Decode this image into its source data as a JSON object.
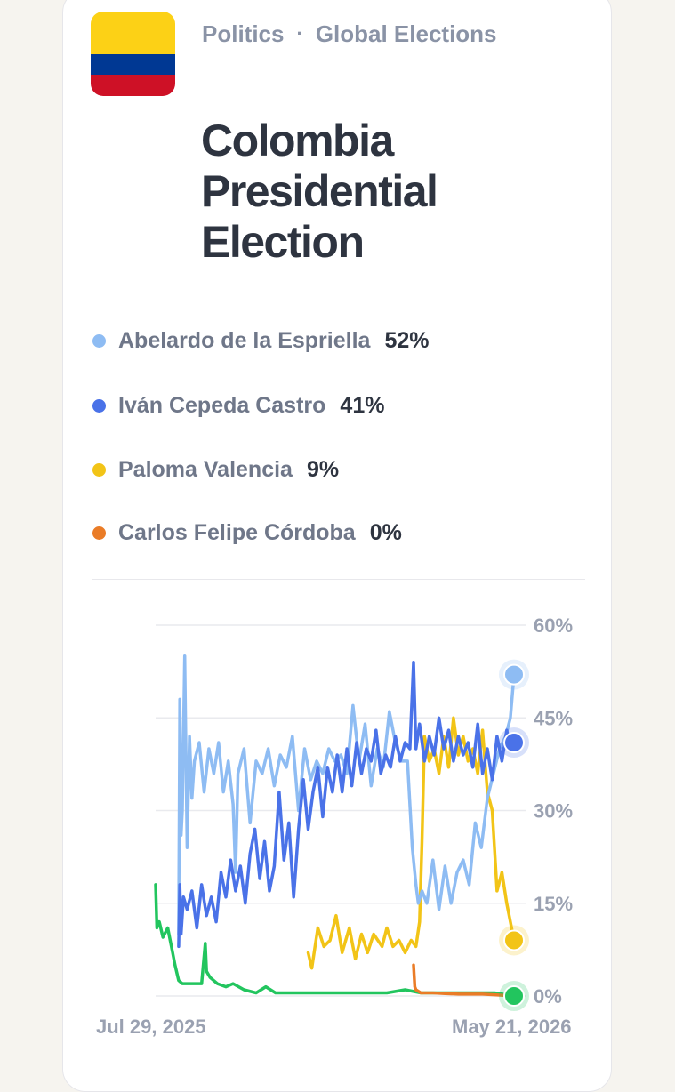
{
  "header": {
    "category": "Politics",
    "separator": "·",
    "subcategory": "Global Elections",
    "title": "Colombia Presidential Election",
    "flag_colors": [
      "#FCD116",
      "#003893",
      "#CE1126"
    ]
  },
  "legend": [
    {
      "name": "Abelardo de la Espriella",
      "value": "52%",
      "color": "#8ebcf3"
    },
    {
      "name": "Iván Cepeda Castro",
      "value": "41%",
      "color": "#4a72e8"
    },
    {
      "name": "Paloma Valencia",
      "value": "9%",
      "color": "#f2c417"
    },
    {
      "name": "Carlos Felipe Córdoba",
      "value": "0%",
      "color": "#ea7c27"
    }
  ],
  "chart_data": {
    "type": "line",
    "title": "",
    "xlabel": "",
    "ylabel": "",
    "x_start_label": "Jul 29, 2025",
    "x_end_label": "May 21, 2026",
    "x_range": [
      "2025-07-29",
      "2026-05-21"
    ],
    "ylim": [
      0,
      60
    ],
    "y_ticks": [
      0,
      15,
      30,
      45,
      60
    ],
    "y_tick_labels": [
      "0%",
      "15%",
      "30%",
      "45%",
      "60%"
    ],
    "y_axis_side": "right",
    "grid": true,
    "series": [
      {
        "name": "",
        "color": "#22c55e",
        "x": [
          "2025-07-29",
          "2025-07-30",
          "2025-08-01",
          "2025-08-04",
          "2025-08-08",
          "2025-08-12",
          "2025-08-14",
          "2025-08-17",
          "2025-08-20",
          "2025-08-25",
          "2025-08-30",
          "2025-09-05",
          "2025-09-08",
          "2025-09-09",
          "2025-09-12",
          "2025-09-18",
          "2025-09-25",
          "2025-10-01",
          "2025-10-10",
          "2025-10-20",
          "2025-10-28",
          "2025-11-05",
          "2025-11-15",
          "2025-11-25",
          "2025-12-05",
          "2025-12-20",
          "2026-01-05",
          "2026-01-20",
          "2026-02-05",
          "2026-02-20",
          "2026-03-05",
          "2026-03-20",
          "2026-04-05",
          "2026-04-20",
          "2026-05-05",
          "2026-05-21"
        ],
        "y": [
          18,
          11,
          12,
          9.5,
          11,
          7,
          5,
          2.5,
          2,
          2,
          2,
          2,
          8.5,
          4,
          3,
          2,
          1.5,
          2,
          1,
          0.5,
          1.5,
          0.5,
          0.5,
          0.5,
          0.5,
          0.5,
          0.5,
          0.5,
          0.5,
          1,
          0.5,
          0.5,
          0.5,
          0.5,
          0.5,
          0
        ]
      },
      {
        "name": "Carlos Felipe Córdoba",
        "color": "#ea7c27",
        "x": [
          "2026-02-27",
          "2026-02-28",
          "2026-03-01",
          "2026-03-05",
          "2026-03-15",
          "2026-03-25",
          "2026-04-05",
          "2026-04-15",
          "2026-04-25",
          "2026-05-05",
          "2026-05-21"
        ],
        "y": [
          5,
          1.5,
          1,
          0.5,
          0.5,
          0.4,
          0.3,
          0.3,
          0.3,
          0.2,
          0
        ]
      },
      {
        "name": "Paloma Valencia",
        "color": "#f2c417",
        "x": [
          "2025-12-02",
          "2025-12-05",
          "2025-12-10",
          "2025-12-15",
          "2025-12-20",
          "2025-12-25",
          "2025-12-30",
          "2026-01-05",
          "2026-01-10",
          "2026-01-15",
          "2026-01-20",
          "2026-01-25",
          "2026-02-01",
          "2026-02-05",
          "2026-02-10",
          "2026-02-15",
          "2026-02-20",
          "2026-02-25",
          "2026-03-01",
          "2026-03-04",
          "2026-03-06",
          "2026-03-08",
          "2026-03-12",
          "2026-03-16",
          "2026-03-20",
          "2026-03-24",
          "2026-03-28",
          "2026-04-01",
          "2026-04-05",
          "2026-04-09",
          "2026-04-13",
          "2026-04-17",
          "2026-04-21",
          "2026-04-25",
          "2026-04-29",
          "2026-05-03",
          "2026-05-07",
          "2026-05-11",
          "2026-05-15",
          "2026-05-18",
          "2026-05-21"
        ],
        "y": [
          7,
          4.5,
          11,
          8,
          9,
          13,
          7,
          11,
          6,
          10,
          7,
          10,
          8,
          11,
          8,
          9,
          7,
          9,
          8,
          12,
          25,
          42,
          38,
          40,
          36,
          42,
          37,
          45,
          39,
          42,
          38,
          40,
          36,
          43,
          33,
          30,
          17,
          20,
          15,
          12,
          9
        ]
      },
      {
        "name": "Abelardo de la Espriella",
        "color": "#8ebcf3",
        "x": [
          "2025-08-17",
          "2025-08-18",
          "2025-08-19",
          "2025-08-20",
          "2025-08-22",
          "2025-08-24",
          "2025-08-26",
          "2025-08-28",
          "2025-08-30",
          "2025-09-03",
          "2025-09-07",
          "2025-09-11",
          "2025-09-15",
          "2025-09-19",
          "2025-09-23",
          "2025-09-27",
          "2025-10-01",
          "2025-10-03",
          "2025-10-05",
          "2025-10-10",
          "2025-10-15",
          "2025-10-20",
          "2025-10-25",
          "2025-10-30",
          "2025-11-04",
          "2025-11-09",
          "2025-11-14",
          "2025-11-19",
          "2025-11-24",
          "2025-11-29",
          "2025-12-04",
          "2025-12-09",
          "2025-12-14",
          "2025-12-19",
          "2025-12-24",
          "2025-12-29",
          "2026-01-03",
          "2026-01-08",
          "2026-01-13",
          "2026-01-18",
          "2026-01-23",
          "2026-01-28",
          "2026-02-02",
          "2026-02-07",
          "2026-02-12",
          "2026-02-17",
          "2026-02-22",
          "2026-02-26",
          "2026-03-01",
          "2026-03-03",
          "2026-03-06",
          "2026-03-10",
          "2026-03-15",
          "2026-03-20",
          "2026-03-25",
          "2026-03-30",
          "2026-04-04",
          "2026-04-09",
          "2026-04-14",
          "2026-04-19",
          "2026-04-24",
          "2026-04-29",
          "2026-05-04",
          "2026-05-09",
          "2026-05-14",
          "2026-05-18",
          "2026-05-21"
        ],
        "y": [
          10,
          48,
          26,
          30,
          55,
          24,
          42,
          32,
          38,
          41,
          33,
          40,
          36,
          41,
          33,
          38,
          31,
          20,
          36,
          40,
          28,
          38,
          36,
          40,
          34,
          39,
          37,
          42,
          30,
          40,
          35,
          38,
          36,
          40,
          38,
          39,
          36,
          47,
          38,
          44,
          34,
          40,
          37,
          46,
          41,
          38,
          38,
          24,
          18,
          15,
          17,
          15,
          22,
          14,
          21,
          15,
          20,
          22,
          18,
          28,
          24,
          32,
          36,
          40,
          42,
          45,
          52
        ]
      },
      {
        "name": "Iván Cepeda Castro",
        "color": "#4a72e8",
        "x": [
          "2025-08-17",
          "2025-08-18",
          "2025-08-19",
          "2025-08-21",
          "2025-08-24",
          "2025-08-28",
          "2025-09-01",
          "2025-09-05",
          "2025-09-09",
          "2025-09-13",
          "2025-09-17",
          "2025-09-21",
          "2025-09-25",
          "2025-09-29",
          "2025-10-03",
          "2025-10-07",
          "2025-10-11",
          "2025-10-15",
          "2025-10-19",
          "2025-10-23",
          "2025-10-27",
          "2025-10-31",
          "2025-11-04",
          "2025-11-08",
          "2025-11-12",
          "2025-11-16",
          "2025-11-20",
          "2025-11-24",
          "2025-11-28",
          "2025-12-02",
          "2025-12-06",
          "2025-12-10",
          "2025-12-14",
          "2025-12-18",
          "2025-12-22",
          "2025-12-26",
          "2025-12-30",
          "2026-01-03",
          "2026-01-07",
          "2026-01-11",
          "2026-01-15",
          "2026-01-19",
          "2026-01-23",
          "2026-01-27",
          "2026-01-31",
          "2026-02-04",
          "2026-02-08",
          "2026-02-12",
          "2026-02-16",
          "2026-02-20",
          "2026-02-24",
          "2026-02-27",
          "2026-03-01",
          "2026-03-04",
          "2026-03-08",
          "2026-03-12",
          "2026-03-16",
          "2026-03-20",
          "2026-03-24",
          "2026-03-28",
          "2026-04-01",
          "2026-04-05",
          "2026-04-09",
          "2026-04-13",
          "2026-04-17",
          "2026-04-21",
          "2026-04-25",
          "2026-04-29",
          "2026-05-03",
          "2026-05-07",
          "2026-05-11",
          "2026-05-15",
          "2026-05-18",
          "2026-05-21"
        ],
        "y": [
          8,
          18,
          10,
          16,
          14,
          17,
          11,
          18,
          13,
          16,
          12,
          20,
          16,
          22,
          17,
          21,
          15,
          23,
          27,
          19,
          25,
          17,
          21,
          33,
          22,
          28,
          16,
          27,
          35,
          27,
          33,
          37,
          29,
          37,
          33,
          39,
          33,
          40,
          34,
          41,
          36,
          40,
          38,
          43,
          36,
          39,
          37,
          42,
          38,
          41,
          40,
          54,
          40,
          44,
          38,
          42,
          39,
          45,
          40,
          43,
          38,
          42,
          39,
          41,
          37,
          44,
          36,
          40,
          35,
          42,
          38,
          43,
          40,
          41
        ]
      }
    ],
    "end_markers": [
      {
        "series": "Abelardo de la Espriella",
        "value": 52
      },
      {
        "series": "Iván Cepeda Castro",
        "value": 41
      },
      {
        "series": "Paloma Valencia",
        "value": 9
      },
      {
        "series": "",
        "value": 0
      }
    ]
  }
}
